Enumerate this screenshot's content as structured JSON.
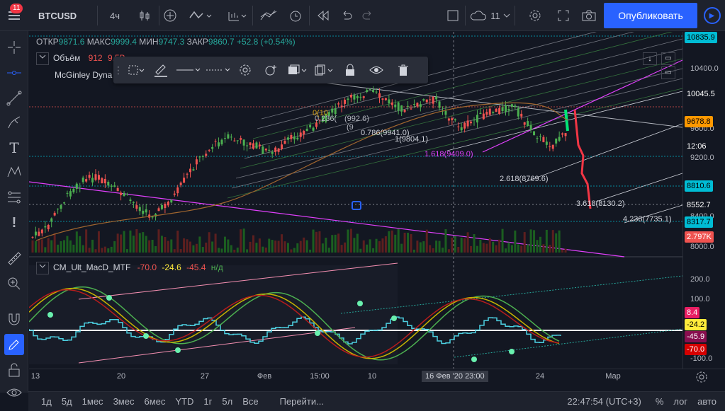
{
  "topbar": {
    "notifications": "11",
    "symbol": "BTCUSD",
    "interval": "4ч",
    "alerts_count": "11",
    "publish_label": "Опубликовать"
  },
  "legend": {
    "open_label": "ОТКР",
    "open": "9871.6",
    "high_label": "МАКС",
    "high": "9999.4",
    "low_label": "МИН",
    "low": "9747.3",
    "close_label": "ЗАКР",
    "close": "9860.7",
    "change": "+52.8 (+0.54%)",
    "volume_label": "Объём",
    "volume_value": "912",
    "volume_value2": "9.5B",
    "indicator2": "McGinley Dyna"
  },
  "fib_labels": {
    "l0": "0(10",
    "l0236": "0.236(",
    "l05": "(9",
    "l0786": "0.786(9941.0)",
    "l1": "1(9804.1)",
    "l1618": "1.618(9409.0)",
    "l2618": "2.618(8769.6)",
    "l3618": "3.618(8130.2)",
    "l4236": "4.236(7735.1)",
    "partial1": "(992.6)"
  },
  "price_scale": {
    "ticks": [
      "10400.0",
      "9600.0",
      "9200.0",
      "8400.0",
      "8000.0"
    ],
    "badges": [
      {
        "text": "10835.9",
        "bg": "#00bcd4",
        "fg": "#000000"
      },
      {
        "text": "10045.5",
        "bg": "#131722",
        "fg": "#ffffff"
      },
      {
        "text": "9678.8",
        "bg": "#ff9800",
        "fg": "#000000"
      },
      {
        "text": "12:06",
        "bg": "#131722",
        "fg": "#ffffff"
      },
      {
        "text": "8810.6",
        "bg": "#00bcd4",
        "fg": "#000000"
      },
      {
        "text": "8552.7",
        "bg": "#131722",
        "fg": "#ffffff"
      },
      {
        "text": "8317.7",
        "bg": "#00bcd4",
        "fg": "#000000"
      },
      {
        "text": "2.797K",
        "bg": "#ef5350",
        "fg": "#ffffff"
      }
    ]
  },
  "macd": {
    "name": "CM_Ult_MacD_MTF",
    "v1": "-70.0",
    "v2": "-24.6",
    "v3": "-45.4",
    "na": "н/д",
    "ticks": [
      "200.0",
      "100.0",
      "-100.0"
    ],
    "badges": [
      {
        "text": "8.4",
        "bg": "#e91e63",
        "fg": "#ffffff"
      },
      {
        "text": "-24.2",
        "bg": "#ffeb3b",
        "fg": "#000000"
      },
      {
        "text": "-45.9",
        "bg": "#880e4f",
        "fg": "#ffffff"
      },
      {
        "text": "-70.0",
        "bg": "#d50000",
        "fg": "#ffffff"
      }
    ]
  },
  "time_scale": {
    "ticks": [
      "13",
      "20",
      "27",
      "Фев",
      "15:00",
      "10",
      "24",
      "Мар"
    ],
    "crosshair": "16 Фев '20   23:00"
  },
  "bottombar": {
    "ranges": [
      "1д",
      "5д",
      "1мес",
      "3мес",
      "6мес",
      "YTD",
      "1г",
      "5л",
      "Все"
    ],
    "goto": "Перейти...",
    "clock": "22:47:54 (UTC+3)",
    "percent": "%",
    "log": "лог",
    "auto": "авто"
  },
  "colors": {
    "up": "#26a69a",
    "down": "#ef5350",
    "accent": "#2962ff"
  }
}
